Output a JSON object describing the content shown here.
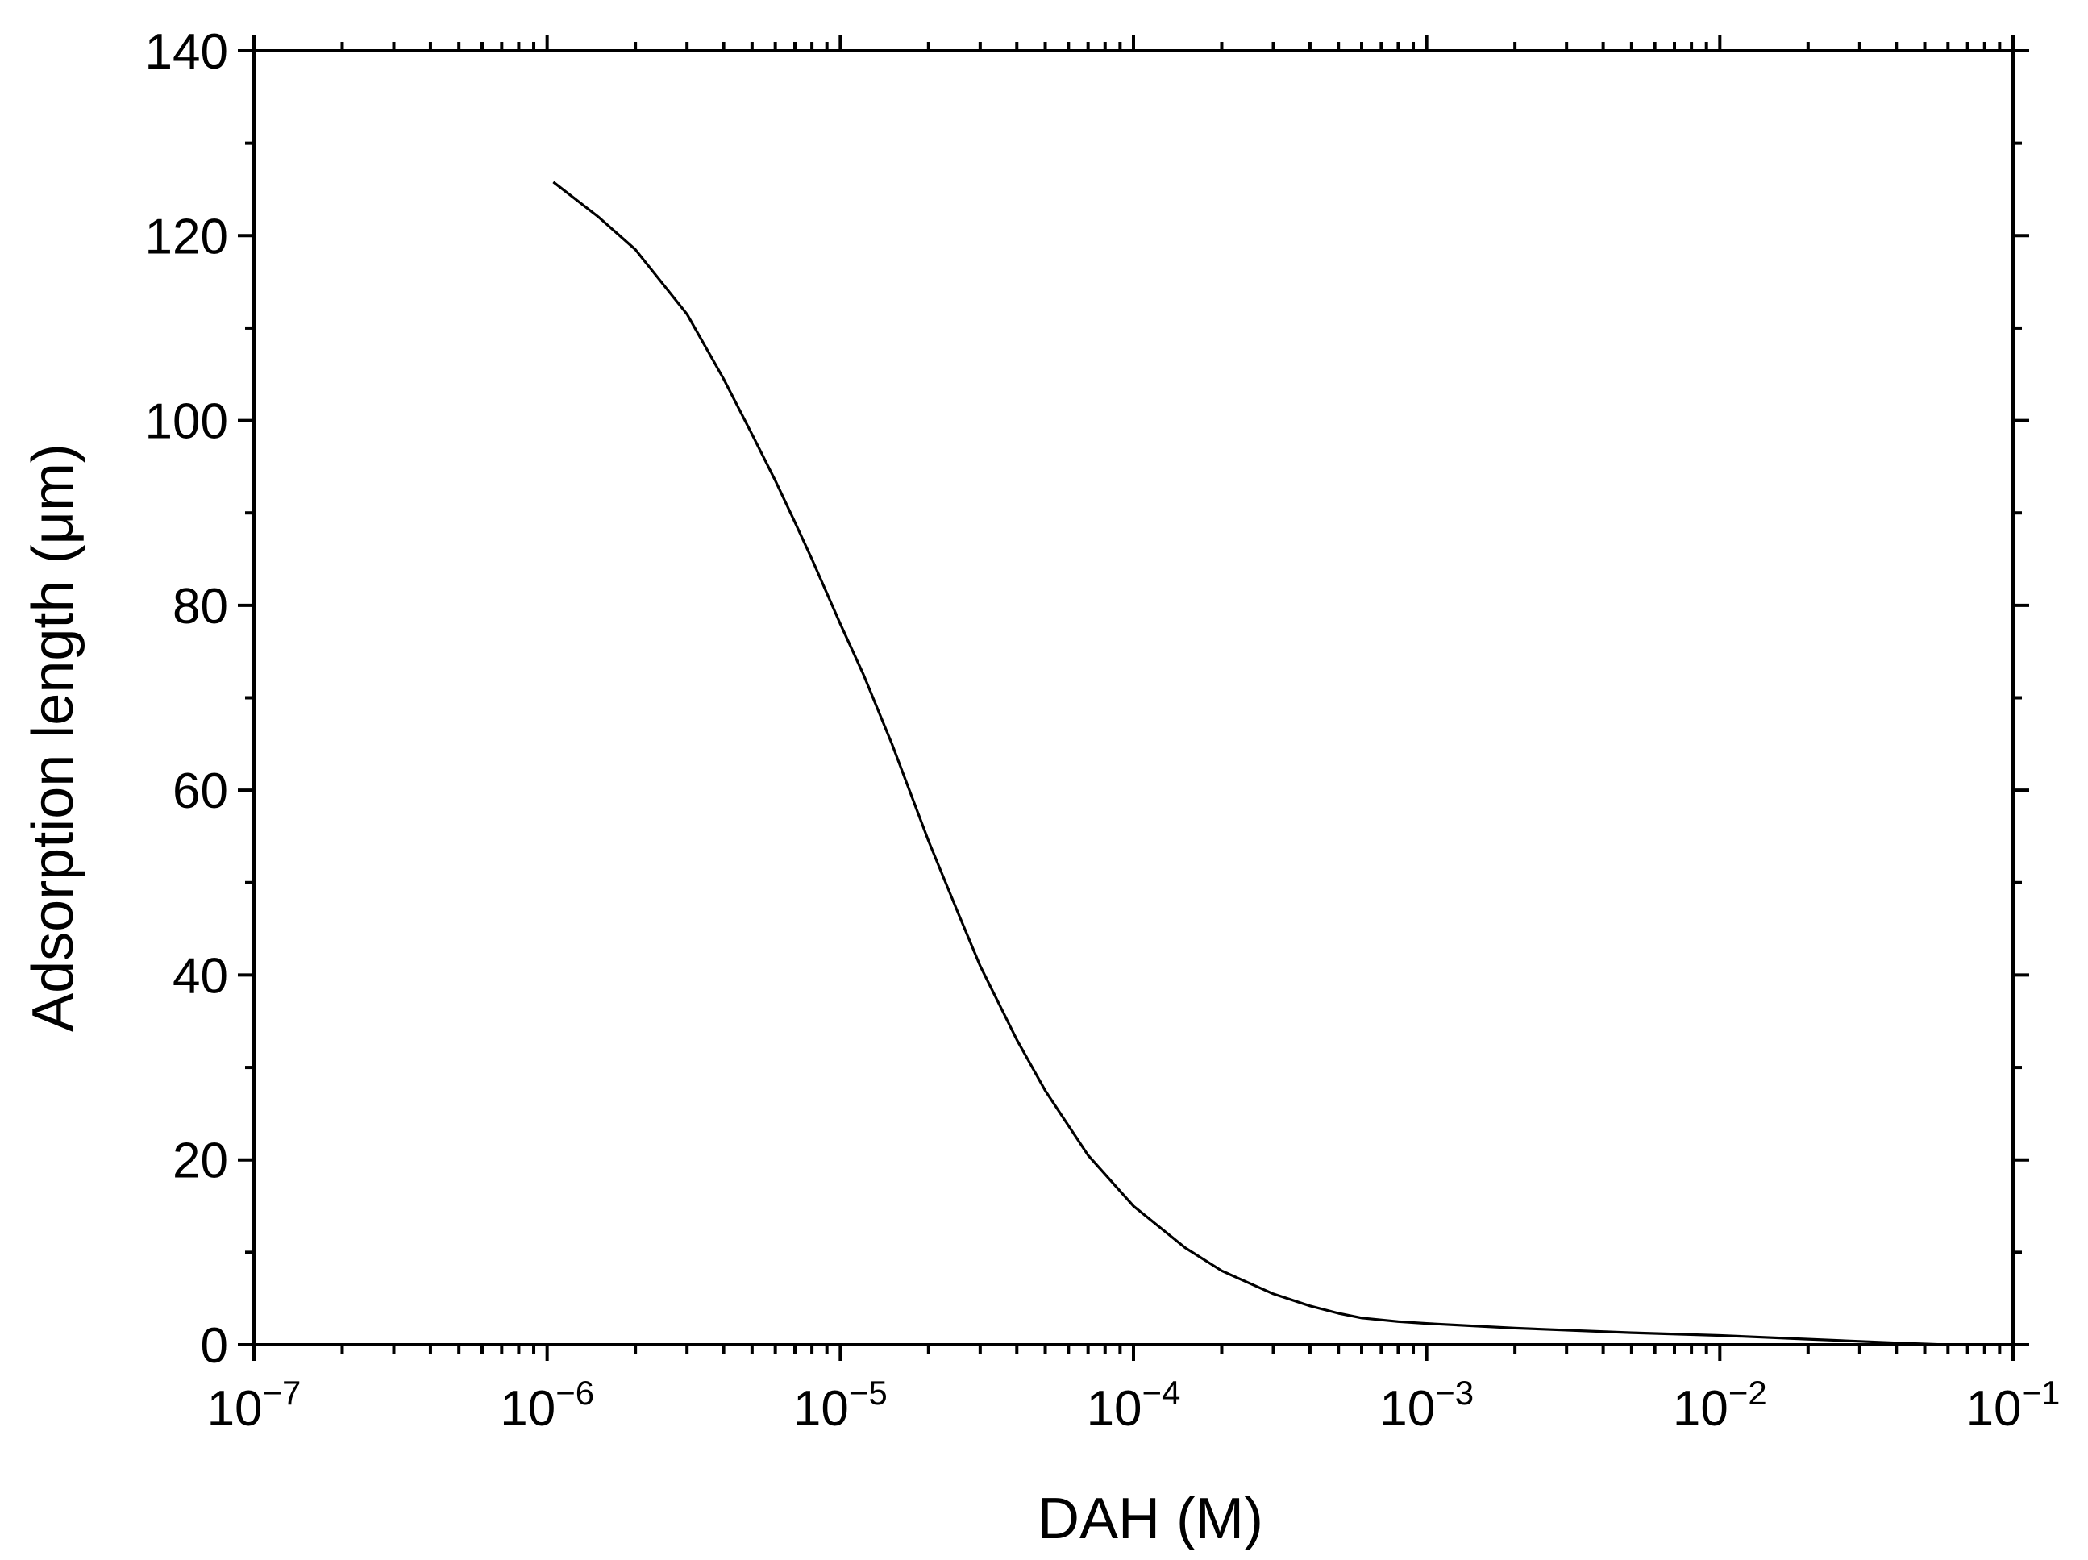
{
  "chart_data": {
    "type": "line",
    "xlabel": "DAH (M)",
    "ylabel": "Adsorption length (μm)",
    "xscale": "log",
    "xlim": [
      1e-07,
      0.1
    ],
    "ylim": [
      0,
      140
    ],
    "grid": false,
    "x_ticks": [
      {
        "value": 1e-07,
        "base": "10",
        "exp": "−7"
      },
      {
        "value": 1e-06,
        "base": "10",
        "exp": "−6"
      },
      {
        "value": 1e-05,
        "base": "10",
        "exp": "−5"
      },
      {
        "value": 0.0001,
        "base": "10",
        "exp": "−4"
      },
      {
        "value": 0.001,
        "base": "10",
        "exp": "−3"
      },
      {
        "value": 0.01,
        "base": "10",
        "exp": "−2"
      },
      {
        "value": 0.1,
        "base": "10",
        "exp": "−1"
      }
    ],
    "y_ticks": [
      0,
      20,
      40,
      60,
      80,
      100,
      120,
      140
    ],
    "series": [
      {
        "color": "#000000",
        "points": [
          [
            1.05e-06,
            125.8
          ],
          [
            1.5e-06,
            122.0
          ],
          [
            2e-06,
            118.5
          ],
          [
            3e-06,
            111.5
          ],
          [
            4e-06,
            104.5
          ],
          [
            5e-06,
            98.5
          ],
          [
            6e-06,
            93.5
          ],
          [
            7e-06,
            89.0
          ],
          [
            8e-06,
            85.0
          ],
          [
            1e-05,
            78.0
          ],
          [
            1.2e-05,
            72.5
          ],
          [
            1.5e-05,
            65.0
          ],
          [
            2e-05,
            54.5
          ],
          [
            2.5e-05,
            47.0
          ],
          [
            3e-05,
            41.0
          ],
          [
            4e-05,
            33.0
          ],
          [
            5e-05,
            27.5
          ],
          [
            7e-05,
            20.5
          ],
          [
            0.0001,
            15.0
          ],
          [
            0.00015,
            10.5
          ],
          [
            0.0002,
            8.0
          ],
          [
            0.0003,
            5.5
          ],
          [
            0.0004,
            4.2
          ],
          [
            0.0005,
            3.4
          ],
          [
            0.0006,
            2.9
          ],
          [
            0.0008,
            2.5
          ],
          [
            0.001,
            2.3
          ],
          [
            0.002,
            1.8
          ],
          [
            0.005,
            1.3
          ],
          [
            0.01,
            1.0
          ],
          [
            0.02,
            0.6
          ],
          [
            0.04,
            0.2
          ],
          [
            0.06,
            0.0
          ]
        ]
      }
    ]
  }
}
